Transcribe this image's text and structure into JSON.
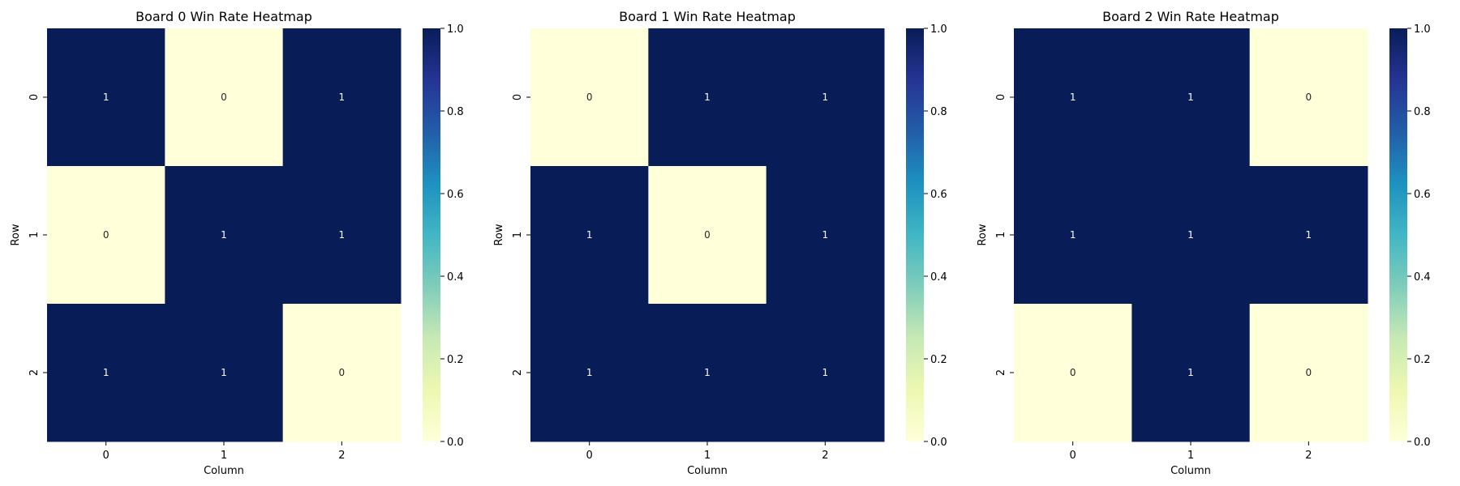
{
  "chart_data": [
    {
      "type": "heatmap",
      "title": "Board 0 Win Rate Heatmap",
      "xlabel": "Column",
      "ylabel": "Row",
      "x_categories": [
        "0",
        "1",
        "2"
      ],
      "y_categories": [
        "0",
        "1",
        "2"
      ],
      "values": [
        [
          1,
          0,
          1
        ],
        [
          0,
          1,
          1
        ],
        [
          1,
          1,
          0
        ]
      ],
      "value_range": [
        0,
        1
      ],
      "colorbar_ticks": [
        "0.0",
        "0.2",
        "0.4",
        "0.6",
        "0.8",
        "1.0"
      ],
      "colormap": "YlGnBu"
    },
    {
      "type": "heatmap",
      "title": "Board 1 Win Rate Heatmap",
      "xlabel": "Column",
      "ylabel": "Row",
      "x_categories": [
        "0",
        "1",
        "2"
      ],
      "y_categories": [
        "0",
        "1",
        "2"
      ],
      "values": [
        [
          0,
          1,
          1
        ],
        [
          1,
          0,
          1
        ],
        [
          1,
          1,
          1
        ]
      ],
      "value_range": [
        0,
        1
      ],
      "colorbar_ticks": [
        "0.0",
        "0.2",
        "0.4",
        "0.6",
        "0.8",
        "1.0"
      ],
      "colormap": "YlGnBu"
    },
    {
      "type": "heatmap",
      "title": "Board 2 Win Rate Heatmap",
      "xlabel": "Column",
      "ylabel": "Row",
      "x_categories": [
        "0",
        "1",
        "2"
      ],
      "y_categories": [
        "0",
        "1",
        "2"
      ],
      "values": [
        [
          1,
          1,
          0
        ],
        [
          1,
          1,
          1
        ],
        [
          0,
          1,
          0
        ]
      ],
      "value_range": [
        0,
        1
      ],
      "colorbar_ticks": [
        "0.0",
        "0.2",
        "0.4",
        "0.6",
        "0.8",
        "1.0"
      ],
      "colormap": "YlGnBu"
    }
  ],
  "colors": {
    "low": "#ffffd9",
    "high": "#081d58",
    "text_on_low": "#262626",
    "text_on_high": "#ffffff"
  }
}
